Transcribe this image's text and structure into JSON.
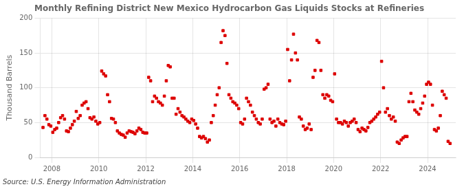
{
  "chart_data": {
    "type": "scatter",
    "title": "Monthly Refining District New Mexico Hydrocarbon Gas Liquids Stocks at Refineries",
    "ylabel": "Thousand Barrels",
    "annotation": "Source: U.S. Energy Information Administration",
    "color": "#dd0000",
    "marker": "square",
    "grid": true,
    "xlim": [
      2007.5,
      2025.2
    ],
    "xticks": [
      2008,
      2010,
      2012,
      2014,
      2016,
      2018,
      2020,
      2022,
      2024
    ],
    "ylim": [
      0,
      200
    ],
    "yticks": [
      0,
      50,
      100,
      150,
      200
    ],
    "x": [
      2007.625,
      2007.708,
      2007.792,
      2007.875,
      2007.958,
      2008.042,
      2008.125,
      2008.208,
      2008.292,
      2008.375,
      2008.458,
      2008.542,
      2008.625,
      2008.708,
      2008.792,
      2008.875,
      2008.958,
      2009.042,
      2009.125,
      2009.208,
      2009.292,
      2009.375,
      2009.458,
      2009.542,
      2009.625,
      2009.708,
      2009.792,
      2009.875,
      2009.958,
      2010.042,
      2010.125,
      2010.208,
      2010.292,
      2010.375,
      2010.458,
      2010.542,
      2010.625,
      2010.708,
      2010.792,
      2010.875,
      2010.958,
      2011.042,
      2011.125,
      2011.208,
      2011.292,
      2011.375,
      2011.458,
      2011.542,
      2011.625,
      2011.708,
      2011.792,
      2011.875,
      2011.958,
      2012.042,
      2012.125,
      2012.208,
      2012.292,
      2012.375,
      2012.458,
      2012.542,
      2012.625,
      2012.708,
      2012.792,
      2012.875,
      2012.958,
      2013.042,
      2013.125,
      2013.208,
      2013.292,
      2013.375,
      2013.458,
      2013.542,
      2013.625,
      2013.708,
      2013.792,
      2013.875,
      2013.958,
      2014.042,
      2014.125,
      2014.208,
      2014.292,
      2014.375,
      2014.458,
      2014.542,
      2014.625,
      2014.708,
      2014.792,
      2014.875,
      2014.958,
      2015.042,
      2015.125,
      2015.208,
      2015.292,
      2015.375,
      2015.458,
      2015.542,
      2015.625,
      2015.708,
      2015.792,
      2015.875,
      2015.958,
      2016.042,
      2016.125,
      2016.208,
      2016.292,
      2016.375,
      2016.458,
      2016.542,
      2016.625,
      2016.708,
      2016.792,
      2016.875,
      2016.958,
      2017.042,
      2017.125,
      2017.208,
      2017.292,
      2017.375,
      2017.458,
      2017.542,
      2017.625,
      2017.708,
      2017.792,
      2017.875,
      2017.958,
      2018.042,
      2018.125,
      2018.208,
      2018.292,
      2018.375,
      2018.458,
      2018.542,
      2018.625,
      2018.708,
      2018.792,
      2018.875,
      2018.958,
      2019.042,
      2019.125,
      2019.208,
      2019.292,
      2019.375,
      2019.458,
      2019.542,
      2019.625,
      2019.708,
      2019.792,
      2019.875,
      2019.958,
      2020.042,
      2020.125,
      2020.208,
      2020.292,
      2020.375,
      2020.458,
      2020.542,
      2020.625,
      2020.708,
      2020.792,
      2020.875,
      2020.958,
      2021.042,
      2021.125,
      2021.208,
      2021.292,
      2021.375,
      2021.458,
      2021.542,
      2021.625,
      2021.708,
      2021.792,
      2021.875,
      2021.958,
      2022.042,
      2022.125,
      2022.208,
      2022.292,
      2022.375,
      2022.458,
      2022.542,
      2022.625,
      2022.708,
      2022.792,
      2022.875,
      2022.958,
      2023.042,
      2023.125,
      2023.208,
      2023.292,
      2023.375,
      2023.458,
      2023.542,
      2023.625,
      2023.708,
      2023.792,
      2023.875,
      2023.958,
      2024.042,
      2024.125,
      2024.208,
      2024.292,
      2024.375,
      2024.458,
      2024.542,
      2024.625,
      2024.708,
      2024.792,
      2024.875,
      2024.958
    ],
    "values": [
      43,
      60,
      55,
      47,
      45,
      36,
      40,
      42,
      50,
      57,
      60,
      55,
      38,
      37,
      42,
      47,
      52,
      66,
      56,
      60,
      75,
      78,
      80,
      70,
      57,
      55,
      58,
      52,
      48,
      50,
      124,
      120,
      117,
      90,
      80,
      56,
      55,
      50,
      38,
      35,
      33,
      32,
      29,
      35,
      38,
      37,
      36,
      34,
      38,
      42,
      40,
      36,
      35,
      35,
      115,
      110,
      80,
      88,
      85,
      80,
      78,
      75,
      88,
      110,
      132,
      130,
      85,
      85,
      62,
      70,
      65,
      60,
      58,
      55,
      52,
      50,
      55,
      53,
      48,
      42,
      30,
      28,
      30,
      27,
      22,
      25,
      50,
      60,
      75,
      90,
      100,
      165,
      182,
      175,
      135,
      90,
      85,
      80,
      78,
      75,
      70,
      50,
      48,
      55,
      85,
      80,
      75,
      65,
      60,
      55,
      50,
      48,
      55,
      98,
      100,
      105,
      55,
      50,
      52,
      45,
      55,
      50,
      48,
      47,
      52,
      155,
      110,
      140,
      177,
      150,
      140,
      58,
      55,
      45,
      40,
      42,
      48,
      40,
      115,
      125,
      168,
      165,
      125,
      90,
      85,
      90,
      88,
      82,
      80,
      120,
      55,
      50,
      50,
      48,
      52,
      50,
      45,
      50,
      52,
      55,
      50,
      40,
      37,
      42,
      40,
      38,
      43,
      50,
      52,
      55,
      58,
      62,
      65,
      138,
      100,
      65,
      70,
      60,
      55,
      58,
      52,
      22,
      20,
      25,
      28,
      30,
      30,
      80,
      92,
      80,
      68,
      65,
      62,
      70,
      78,
      88,
      105,
      108,
      105,
      75,
      40,
      38,
      42,
      60,
      95,
      90,
      85,
      23,
      20
    ]
  }
}
